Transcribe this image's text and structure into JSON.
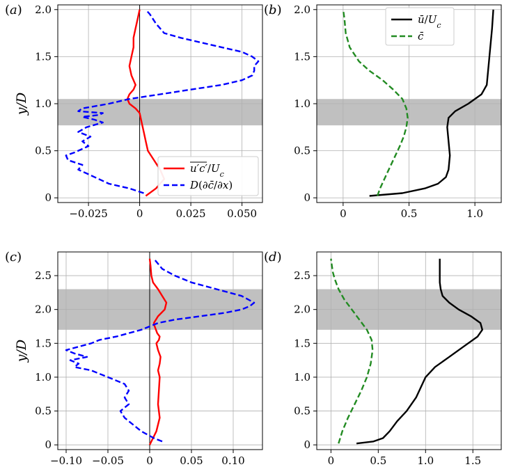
{
  "figure": {
    "panels": [
      {
        "id": "a",
        "label": "(a)",
        "type": "line",
        "ylabel": "y/D",
        "xlim": [
          -0.04,
          0.06
        ],
        "ylim": [
          -0.05,
          2.05
        ],
        "xticks": [
          -0.025,
          0,
          0.025,
          0.05
        ],
        "xtick_labels": [
          "−0.025",
          "0",
          "0.025",
          "0.050"
        ],
        "yticks": [
          0,
          0.5,
          1.0,
          1.5,
          2.0
        ],
        "ytick_labels": [
          "0",
          "0.5",
          "1.0",
          "1.5",
          "2.0"
        ],
        "grid": true,
        "shaded_band": [
          0.77,
          1.05
        ],
        "zero_line": true,
        "legend": {
          "placement": "lower-right",
          "entries": [
            "u′c′/U_c",
            "D(∂c̄/∂x)"
          ]
        },
        "series": [
          {
            "name": "u′c′/U_c",
            "color": "#ff0000",
            "style": "solid",
            "x": [
              0.003,
              0.008,
              0.012,
              0.01,
              0.007,
              0.004,
              0.003,
              0.002,
              0.001,
              0.0,
              -0.002,
              -0.005,
              -0.006,
              -0.005,
              -0.003,
              -0.002,
              -0.004,
              -0.005,
              -0.004,
              -0.003,
              -0.003,
              -0.002,
              -0.001,
              0.0
            ],
            "y": [
              0.02,
              0.1,
              0.2,
              0.3,
              0.4,
              0.5,
              0.6,
              0.7,
              0.8,
              0.9,
              0.95,
              1.0,
              1.05,
              1.1,
              1.15,
              1.2,
              1.3,
              1.4,
              1.5,
              1.6,
              1.7,
              1.8,
              1.9,
              2.0
            ]
          },
          {
            "name": "D(∂c̄/∂x)",
            "color": "#0000ff",
            "style": "dashed",
            "x": [
              0.002,
              -0.005,
              -0.015,
              -0.025,
              -0.03,
              -0.028,
              -0.035,
              -0.036,
              -0.032,
              -0.025,
              -0.028,
              -0.024,
              -0.03,
              -0.026,
              -0.018,
              -0.022,
              -0.028,
              -0.02,
              -0.018,
              -0.03,
              -0.028,
              -0.015,
              -0.005,
              0.01,
              0.025,
              0.04,
              0.05,
              0.055,
              0.056,
              0.056,
              0.058,
              0.055,
              0.05,
              0.04,
              0.03,
              0.02,
              0.012,
              0.008,
              0.005,
              0.003
            ],
            "y": [
              0.05,
              0.1,
              0.15,
              0.25,
              0.3,
              0.35,
              0.4,
              0.45,
              0.48,
              0.55,
              0.6,
              0.65,
              0.7,
              0.75,
              0.8,
              0.83,
              0.86,
              0.88,
              0.9,
              0.92,
              0.95,
              1.0,
              1.05,
              1.1,
              1.15,
              1.2,
              1.25,
              1.3,
              1.35,
              1.4,
              1.45,
              1.5,
              1.55,
              1.6,
              1.65,
              1.7,
              1.75,
              1.85,
              1.95,
              2.0
            ]
          }
        ]
      },
      {
        "id": "b",
        "label": "(b)",
        "type": "line",
        "ylabel": "",
        "xlim": [
          -0.2,
          1.2
        ],
        "ylim": [
          -0.05,
          2.05
        ],
        "xticks": [
          0,
          0.5,
          1.0
        ],
        "xtick_labels": [
          "0",
          "0.5",
          "1.0"
        ],
        "yticks": [
          0,
          0.5,
          1.0,
          1.5,
          2.0
        ],
        "ytick_labels": [
          "0",
          "0.5",
          "1.0",
          "1.5",
          "2.0"
        ],
        "grid": true,
        "shaded_band": [
          0.77,
          1.05
        ],
        "zero_line": false,
        "legend": {
          "placement": "top-right",
          "entries": [
            "ū/U_c",
            "c̄"
          ]
        },
        "series": [
          {
            "name": "ū/U_c",
            "color": "#000000",
            "style": "solid",
            "x": [
              0.2,
              0.45,
              0.62,
              0.72,
              0.78,
              0.8,
              0.81,
              0.8,
              0.79,
              0.8,
              0.85,
              0.95,
              1.05,
              1.09,
              1.1,
              1.11,
              1.12,
              1.13,
              1.14
            ],
            "y": [
              0.02,
              0.05,
              0.1,
              0.15,
              0.22,
              0.3,
              0.45,
              0.6,
              0.75,
              0.85,
              0.92,
              1.0,
              1.1,
              1.2,
              1.35,
              1.5,
              1.65,
              1.8,
              2.0
            ]
          },
          {
            "name": "c̄",
            "color": "#228b22",
            "style": "dashed",
            "x": [
              0.26,
              0.28,
              0.33,
              0.38,
              0.43,
              0.46,
              0.48,
              0.49,
              0.48,
              0.45,
              0.38,
              0.3,
              0.2,
              0.12,
              0.05,
              0.02,
              0.01,
              0.0
            ],
            "y": [
              0.02,
              0.1,
              0.25,
              0.4,
              0.55,
              0.65,
              0.75,
              0.85,
              0.95,
              1.05,
              1.15,
              1.25,
              1.35,
              1.45,
              1.6,
              1.75,
              1.9,
              2.0
            ]
          }
        ]
      },
      {
        "id": "c",
        "label": "(c)",
        "type": "line",
        "ylabel": "y/D",
        "xlim": [
          -0.11,
          0.135
        ],
        "ylim": [
          -0.07,
          2.85
        ],
        "xticks": [
          -0.1,
          -0.05,
          0,
          0.05,
          0.1
        ],
        "xtick_labels": [
          "−0.10",
          "−0.05",
          "0",
          "0.05",
          "0.10"
        ],
        "yticks": [
          0,
          0.5,
          1.0,
          1.5,
          2.0,
          2.5
        ],
        "ytick_labels": [
          "0",
          "0.5",
          "1.0",
          "1.5",
          "2.0",
          "2.5"
        ],
        "grid": true,
        "shaded_band": [
          1.7,
          2.3
        ],
        "zero_line": true,
        "legend": null,
        "series": [
          {
            "name": "u′c′/U_c",
            "color": "#ff0000",
            "style": "solid",
            "x": [
              0.0,
              0.008,
              0.012,
              0.01,
              0.011,
              0.012,
              0.01,
              0.012,
              0.013,
              0.01,
              0.008,
              0.011,
              0.012,
              0.009,
              0.006,
              0.005,
              0.01,
              0.018,
              0.02,
              0.015,
              0.01,
              0.004,
              0.002,
              0.001,
              0.0
            ],
            "y": [
              0.0,
              0.2,
              0.4,
              0.6,
              0.8,
              1.0,
              1.1,
              1.2,
              1.3,
              1.4,
              1.5,
              1.55,
              1.6,
              1.65,
              1.75,
              1.8,
              1.9,
              2.0,
              2.1,
              2.2,
              2.3,
              2.4,
              2.5,
              2.65,
              2.75
            ]
          },
          {
            "name": "D(∂c̄/∂x)",
            "color": "#0000ff",
            "style": "dashed",
            "x": [
              0.015,
              0.005,
              -0.01,
              -0.02,
              -0.03,
              -0.035,
              -0.025,
              -0.03,
              -0.025,
              -0.03,
              -0.05,
              -0.06,
              -0.07,
              -0.09,
              -0.085,
              -0.095,
              -0.075,
              -0.09,
              -0.1,
              -0.07,
              -0.06,
              -0.04,
              -0.01,
              0.01,
              0.03,
              0.06,
              0.09,
              0.11,
              0.12,
              0.125,
              0.11,
              0.08,
              0.05,
              0.03,
              0.015,
              0.005
            ],
            "y": [
              0.05,
              0.1,
              0.2,
              0.3,
              0.4,
              0.5,
              0.6,
              0.7,
              0.8,
              0.9,
              1.0,
              1.05,
              1.1,
              1.15,
              1.2,
              1.25,
              1.3,
              1.35,
              1.4,
              1.5,
              1.55,
              1.6,
              1.7,
              1.8,
              1.85,
              1.9,
              1.95,
              2.0,
              2.05,
              2.1,
              2.2,
              2.3,
              2.4,
              2.5,
              2.6,
              2.75
            ]
          }
        ]
      },
      {
        "id": "d",
        "label": "(d)",
        "type": "line",
        "ylabel": "",
        "xlim": [
          -0.15,
          1.8
        ],
        "ylim": [
          -0.07,
          2.85
        ],
        "xticks": [
          0,
          0.5,
          1.0,
          1.5
        ],
        "xtick_labels": [
          "0",
          "0.5",
          "1.0",
          "1.5"
        ],
        "yticks": [
          0,
          0.5,
          1.0,
          1.5,
          2.0,
          2.5
        ],
        "ytick_labels": [
          "0",
          "0.5",
          "1.0",
          "1.5",
          "2.0",
          "2.5"
        ],
        "grid": true,
        "shaded_band": [
          1.7,
          2.3
        ],
        "zero_line": false,
        "legend": null,
        "series": [
          {
            "name": "ū/U_c",
            "color": "#000000",
            "style": "solid",
            "x": [
              0.27,
              0.45,
              0.55,
              0.62,
              0.7,
              0.8,
              0.9,
              0.95,
              1.0,
              1.1,
              1.25,
              1.4,
              1.55,
              1.6,
              1.58,
              1.48,
              1.35,
              1.25,
              1.18,
              1.16,
              1.15,
              1.15,
              1.15
            ],
            "y": [
              0.02,
              0.05,
              0.1,
              0.2,
              0.35,
              0.5,
              0.7,
              0.85,
              1.0,
              1.15,
              1.3,
              1.45,
              1.6,
              1.7,
              1.8,
              1.9,
              2.0,
              2.1,
              2.2,
              2.3,
              2.4,
              2.55,
              2.75
            ]
          },
          {
            "name": "c̄",
            "color": "#228b22",
            "style": "dashed",
            "x": [
              0.08,
              0.12,
              0.18,
              0.25,
              0.32,
              0.38,
              0.42,
              0.44,
              0.43,
              0.38,
              0.3,
              0.22,
              0.14,
              0.08,
              0.04,
              0.02,
              0.01,
              0.0
            ],
            "y": [
              0.02,
              0.2,
              0.4,
              0.6,
              0.8,
              1.0,
              1.2,
              1.4,
              1.55,
              1.7,
              1.85,
              2.0,
              2.15,
              2.3,
              2.45,
              2.55,
              2.65,
              2.75
            ]
          }
        ]
      }
    ]
  },
  "chart_data": [
    {
      "type": "line",
      "panel": "a",
      "ylabel": "y/D",
      "ylim": [
        -0.05,
        2.05
      ],
      "xlim": [
        -0.04,
        0.06
      ],
      "grid": true,
      "legend_placement": "lower-right",
      "series_names": [
        "u′c′/U_c",
        "D(∂c̄/∂x)"
      ]
    },
    {
      "type": "line",
      "panel": "b",
      "ylim": [
        -0.05,
        2.05
      ],
      "xlim": [
        -0.2,
        1.2
      ],
      "grid": true,
      "legend_placement": "top-right",
      "series_names": [
        "ū/U_c",
        "c̄"
      ]
    },
    {
      "type": "line",
      "panel": "c",
      "ylabel": "y/D",
      "ylim": [
        -0.07,
        2.85
      ],
      "xlim": [
        -0.11,
        0.135
      ],
      "grid": true
    },
    {
      "type": "line",
      "panel": "d",
      "ylim": [
        -0.07,
        2.85
      ],
      "xlim": [
        -0.15,
        1.8
      ],
      "grid": true
    }
  ]
}
